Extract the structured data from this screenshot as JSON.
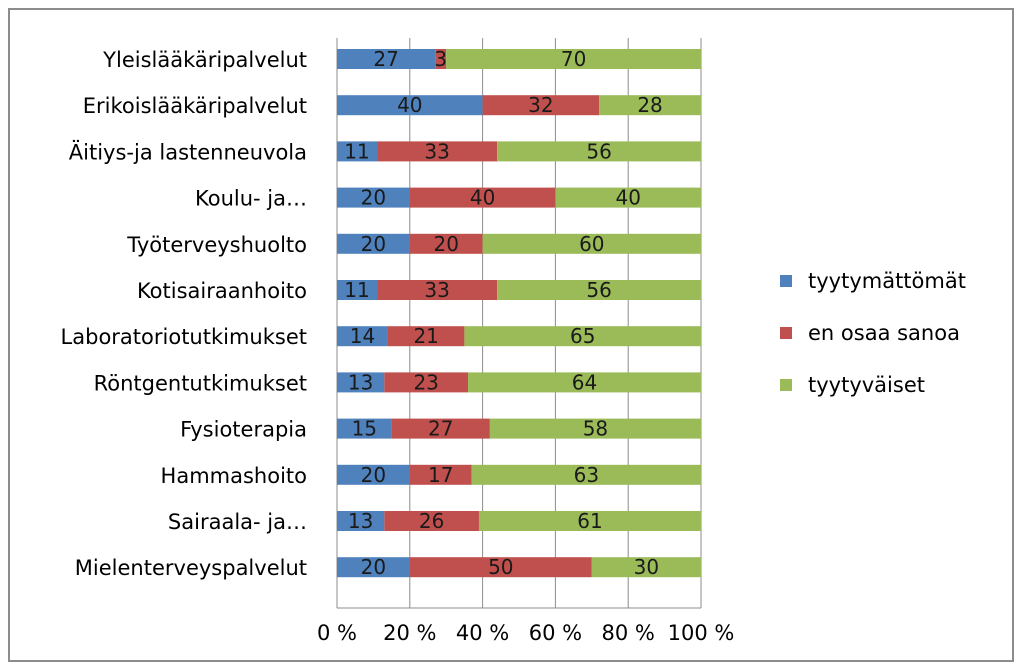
{
  "chart_data": {
    "type": "bar",
    "orientation": "horizontal",
    "stacked": true,
    "percent_stacked": true,
    "categories": [
      "Yleislääkäripalvelut",
      "Erikoislääkäripalvelut",
      "Äitiys-ja lastenneuvola",
      "Koulu- ja…",
      "Työterveyshuolto",
      "Kotisairaanhoito",
      "Laboratoriotutkimukset",
      "Röntgentutkimukset",
      "Fysioterapia",
      "Hammashoito",
      "Sairaala- ja…",
      "Mielenterveyspalvelut"
    ],
    "series": [
      {
        "name": "tyytymättömät",
        "color": "#4f81bd",
        "values": [
          27,
          40,
          11,
          20,
          20,
          11,
          14,
          13,
          15,
          20,
          13,
          20
        ]
      },
      {
        "name": "en osaa sanoa",
        "color": "#c0504d",
        "values": [
          3,
          32,
          33,
          40,
          20,
          33,
          21,
          23,
          27,
          17,
          26,
          50
        ]
      },
      {
        "name": "tyytyväiset",
        "color": "#9bbb59",
        "values": [
          70,
          28,
          56,
          40,
          60,
          56,
          65,
          64,
          58,
          63,
          61,
          30
        ]
      }
    ],
    "x_ticks": [
      "0 %",
      "20 %",
      "40 %",
      "60 %",
      "80 %",
      "100 %"
    ],
    "xlim": [
      0,
      100
    ],
    "grid": "vertical",
    "legend_position": "right",
    "data_labels": true
  }
}
